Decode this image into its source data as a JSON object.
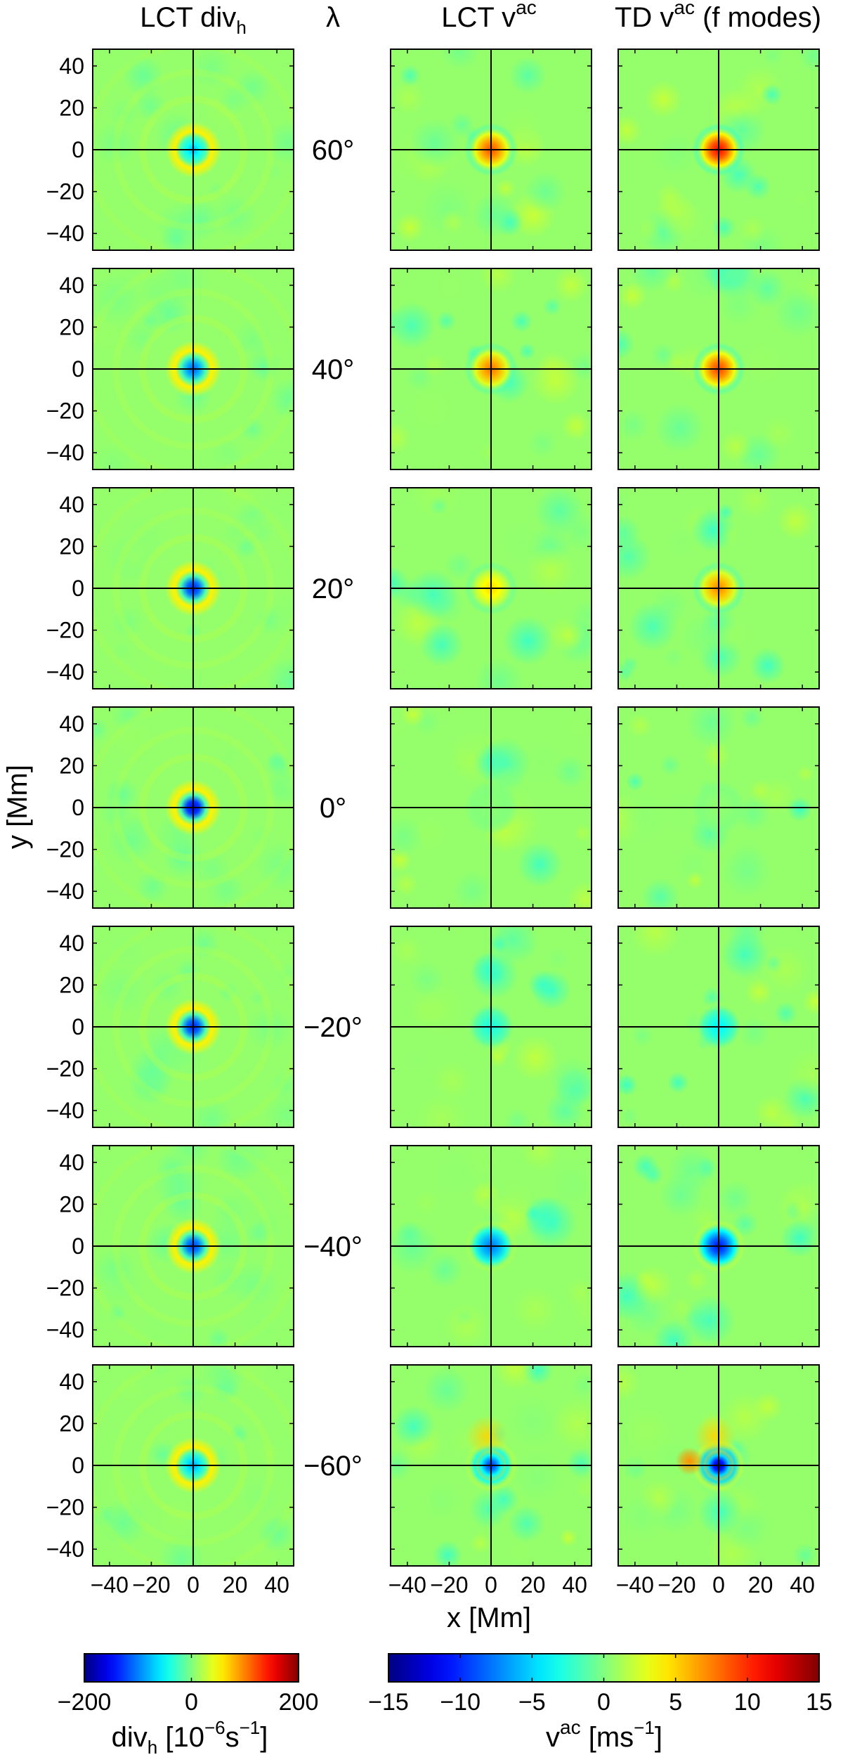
{
  "chart_data": {
    "type": "heatmap",
    "grid": "7 rows x 3 columns of heatmap panels",
    "column_titles": [
      {
        "main": "LCT div",
        "sub": "h",
        "sup": ""
      },
      {
        "main": "LCT v",
        "sub": "",
        "sup": "ac"
      },
      {
        "main": "TD v",
        "sub": "",
        "sup": "ac",
        "tail": " (f modes)"
      }
    ],
    "row_header": "λ",
    "rows": [
      {
        "latitude_label": "60°",
        "div_peak": -80,
        "lct_vac_peak": 9.0,
        "td_vac_peak": 11.5,
        "td_side_peak": 0
      },
      {
        "latitude_label": "40°",
        "div_peak": -115,
        "lct_vac_peak": 8.0,
        "td_vac_peak": 9.5,
        "td_side_peak": 0
      },
      {
        "latitude_label": "20°",
        "div_peak": -140,
        "lct_vac_peak": 5.0,
        "td_vac_peak": 7.5,
        "td_side_peak": 0
      },
      {
        "latitude_label": "0°",
        "div_peak": -160,
        "lct_vac_peak": 0.3,
        "td_vac_peak": 0.5,
        "td_side_peak": 0
      },
      {
        "latitude_label": "−20°",
        "div_peak": -140,
        "lct_vac_peak": -3.0,
        "td_vac_peak": -4.0,
        "td_side_peak": 0
      },
      {
        "latitude_label": "−40°",
        "div_peak": -130,
        "lct_vac_peak": -8.0,
        "td_vac_peak": -11.0,
        "td_side_peak": 0
      },
      {
        "latitude_label": "−60°",
        "div_peak": -90,
        "lct_vac_peak": -10.0,
        "td_vac_peak": -14.0,
        "td_side_peak": 7.0
      }
    ],
    "x_axis": {
      "label": "x [Mm]",
      "range": [
        -48,
        48
      ],
      "ticks": [
        -40,
        -20,
        0,
        20,
        40
      ],
      "tick_labels": [
        "−40",
        "−20",
        "0",
        "20",
        "40"
      ]
    },
    "y_axis": {
      "label": "y [Mm]",
      "range": [
        -48,
        48
      ],
      "ticks": [
        40,
        20,
        0,
        -20,
        -40
      ],
      "tick_labels": [
        "40",
        "20",
        "0",
        "−20",
        "−40"
      ]
    },
    "colorbars": [
      {
        "label_main": "div",
        "label_sub": "h",
        "label_rest": " [10",
        "label_sup1": "−6",
        "label_mid": "s",
        "label_sup2": "−1",
        "label_end": "]",
        "range": [
          -200,
          200
        ],
        "ticks": [
          -200,
          0,
          200
        ],
        "tick_labels": [
          "−200",
          "0",
          "200"
        ]
      },
      {
        "label_main": "v",
        "label_sup0": "ac",
        "label_rest": " [ms",
        "label_sup1": "−1",
        "label_end": "]",
        "range": [
          -15,
          15
        ],
        "ticks": [
          -15,
          -10,
          -5,
          0,
          5,
          10,
          15
        ],
        "tick_labels": [
          "−15",
          "−10",
          "−5",
          "0",
          "5",
          "10",
          "15"
        ]
      }
    ],
    "colormap": "jet"
  }
}
